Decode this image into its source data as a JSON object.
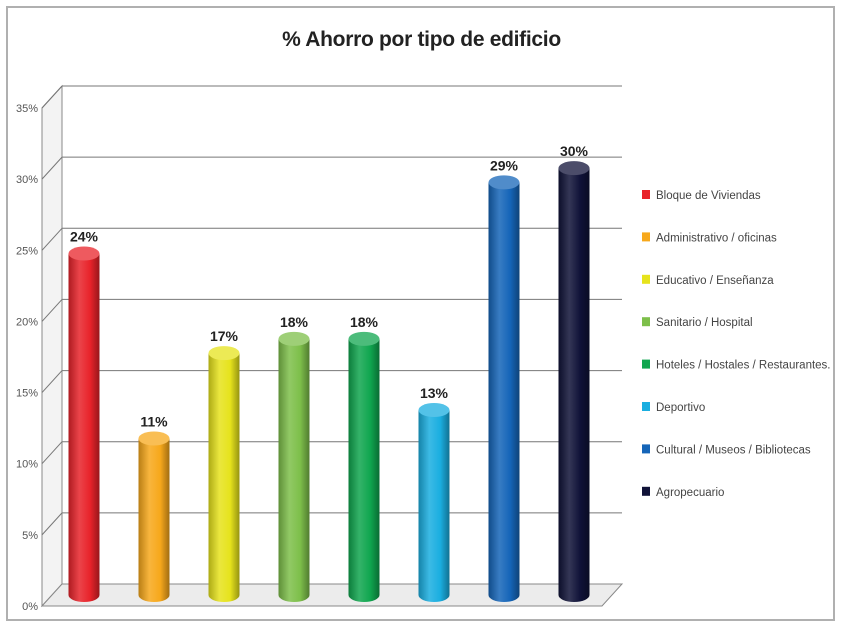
{
  "chart_data": {
    "type": "bar",
    "title": "% Ahorro por tipo de edificio",
    "xlabel": "",
    "ylabel": "",
    "ylim": [
      0,
      35
    ],
    "y_ticks": [
      "0%",
      "5%",
      "10%",
      "15%",
      "20%",
      "25%",
      "30%",
      "35%"
    ],
    "grid": true,
    "legend_position": "right",
    "categories": [
      "Bloque de Viviendas",
      "Administrativo / oficinas",
      "Educativo / Enseñanza",
      "Sanitario / Hospital",
      "Hoteles / Hostales / Restaurantes.",
      "Deportivo",
      "Cultural / Museos / Bibliotecas",
      "Agropecuario"
    ],
    "values": [
      24,
      11,
      17,
      18,
      18,
      13,
      29,
      30
    ],
    "data_labels": [
      "24%",
      "11%",
      "17%",
      "18%",
      "18%",
      "13%",
      "29%",
      "30%"
    ],
    "colors": [
      "#e8232a",
      "#f7a81b",
      "#e6e31c",
      "#7dbf4a",
      "#10a64f",
      "#1aaee0",
      "#1565b8",
      "#101238"
    ]
  }
}
